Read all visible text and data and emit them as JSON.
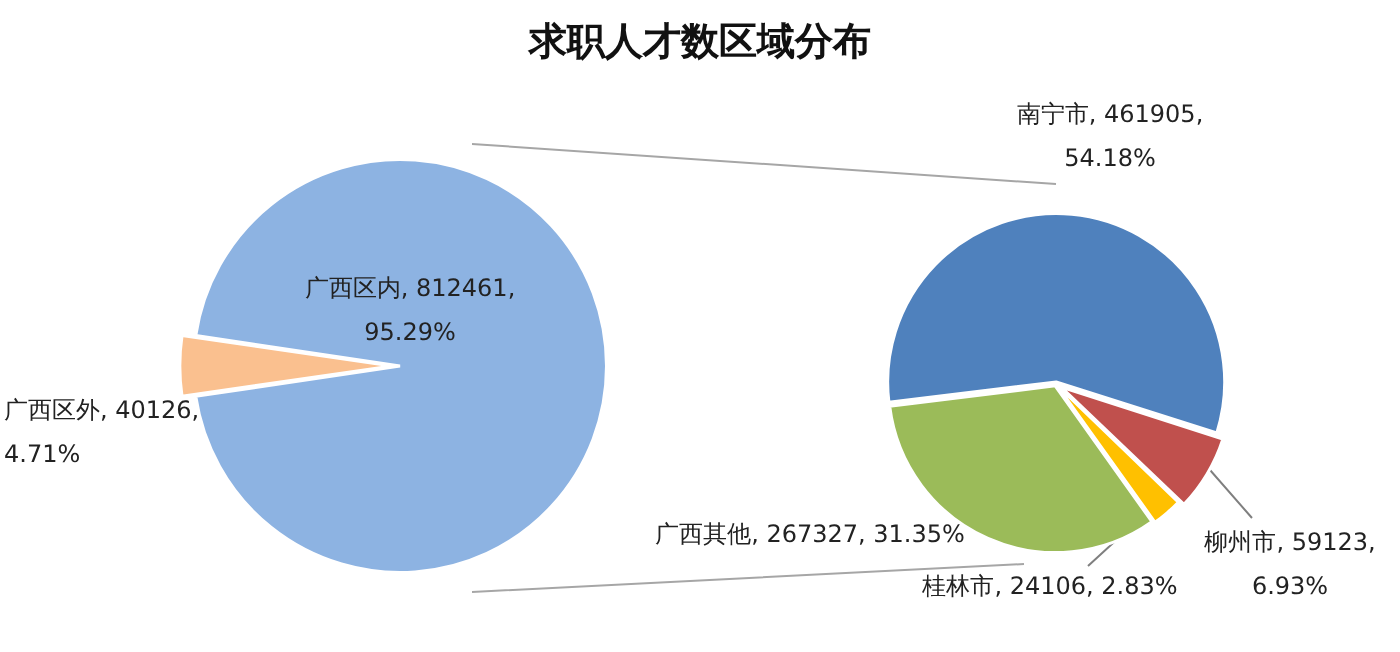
{
  "chart_data": [
    {
      "type": "pie",
      "title": "求职人才数区域分布",
      "categories": [
        "广西区内",
        "广西区外"
      ],
      "values": [
        812461,
        40126
      ],
      "colors": [
        "#8db3e2",
        "#fac08f"
      ],
      "value_labels": [
        "812461, 95.29%",
        "40126, 4.71%"
      ],
      "legend": false
    },
    {
      "type": "pie",
      "categories": [
        "南宁市",
        "柳州市",
        "桂林市",
        "广西其他"
      ],
      "values": [
        461905,
        59123,
        24106,
        267327
      ],
      "colors": [
        "#4f81bd",
        "#c0504d",
        "#ffc000",
        "#9bbb59"
      ],
      "value_labels": [
        "461905, 54.18%",
        "59123, 6.93%",
        "24106, 2.83%",
        "267327, 31.35%"
      ],
      "legend": false
    }
  ]
}
